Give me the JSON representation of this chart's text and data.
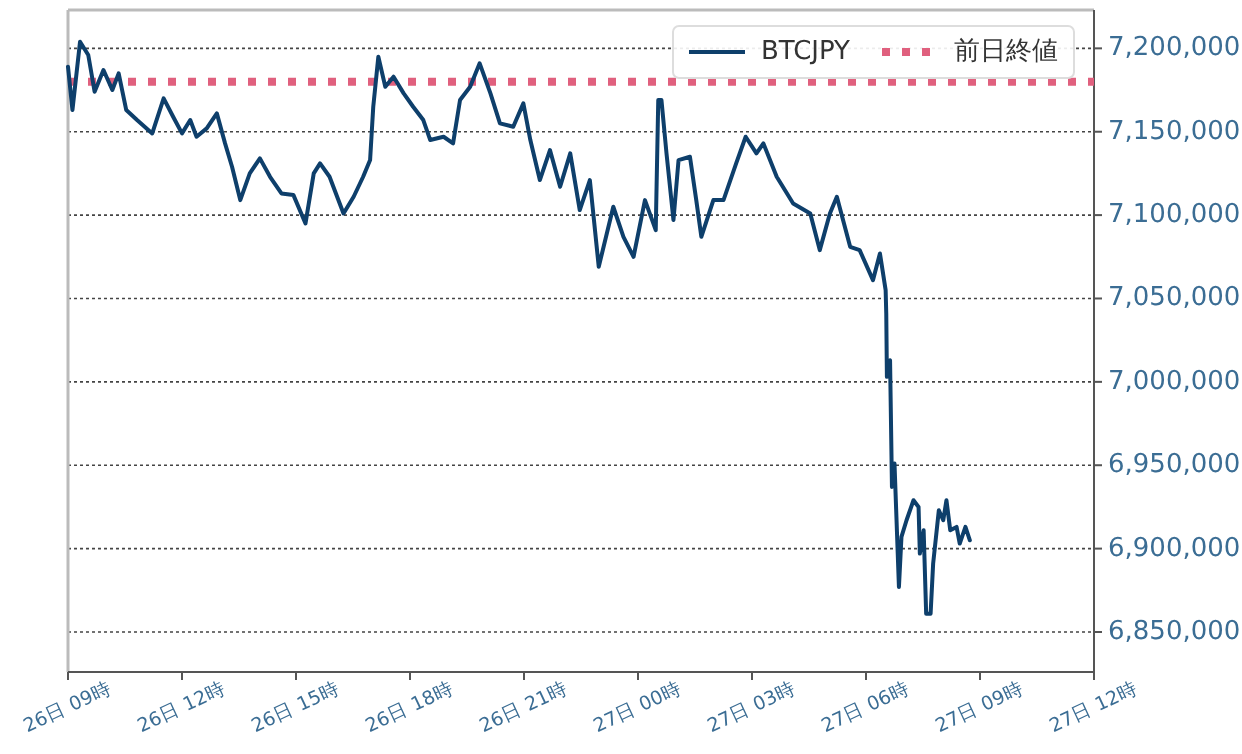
{
  "chart_data": {
    "type": "line",
    "x": [
      "--01-26T09:00",
      "--01-26T09:07",
      "--01-26T09:19",
      "--01-26T09:32",
      "--01-26T09:42",
      "--01-26T09:56",
      "--01-26T10:10",
      "--01-26T10:20",
      "--01-26T10:32",
      "--01-26T10:49",
      "--01-26T11:13",
      "--01-26T11:31",
      "--01-26T11:46",
      "--01-26T12:00",
      "--01-26T12:13",
      "--01-26T12:23",
      "--01-26T12:39",
      "--01-26T12:55",
      "--01-26T13:08",
      "--01-26T13:19",
      "--01-26T13:32",
      "--01-26T13:47",
      "--01-26T14:03",
      "--01-26T14:19",
      "--01-26T14:37",
      "--01-26T14:56",
      "--01-26T15:15",
      "--01-26T15:28",
      "--01-26T15:38",
      "--01-26T15:53",
      "--01-26T16:15",
      "--01-26T16:31",
      "--01-26T16:46",
      "--01-26T16:57",
      "--01-26T17:02",
      "--01-26T17:10",
      "--01-26T17:21",
      "--01-26T17:34",
      "--01-26T17:50",
      "--01-26T18:05",
      "--01-26T18:21",
      "--01-26T18:32",
      "--01-26T18:53",
      "--01-26T19:08",
      "--01-26T19:19",
      "--01-26T19:35",
      "--01-26T19:50",
      "--01-26T20:07",
      "--01-26T20:22",
      "--01-26T20:43",
      "--01-26T20:59",
      "--01-26T21:10",
      "--01-26T21:25",
      "--01-26T21:41",
      "--01-26T21:57",
      "--01-26T22:13",
      "--01-26T22:28",
      "--01-26T22:44",
      "--01-26T22:58",
      "--01-26T23:21",
      "--01-26T23:37",
      "--01-26T23:53",
      "--01-27T00:11",
      "--01-27T00:28",
      "--01-27T00:32",
      "--01-27T00:37",
      "--01-27T00:45",
      "--01-27T00:56",
      "--01-27T01:04",
      "--01-27T01:22",
      "--01-27T01:32",
      "--01-27T01:40",
      "--01-27T01:59",
      "--01-27T02:15",
      "--01-27T02:35",
      "--01-27T02:50",
      "--01-27T03:07",
      "--01-27T03:18",
      "--01-27T03:39",
      "--01-27T04:05",
      "--01-27T04:32",
      "--01-27T04:47",
      "--01-27T05:03",
      "--01-27T05:14",
      "--01-27T05:35",
      "--01-27T05:50",
      "--01-27T06:11",
      "--01-27T06:22",
      "--01-27T06:31",
      "--01-27T06:32",
      "--01-27T06:33",
      "--01-27T06:38",
      "--01-27T06:41",
      "--01-27T06:45",
      "--01-27T06:52",
      "--01-27T06:56",
      "--01-27T07:04",
      "--01-27T07:15",
      "--01-27T07:23",
      "--01-27T07:25",
      "--01-27T07:31",
      "--01-27T07:35",
      "--01-27T07:42",
      "--01-27T07:46",
      "--01-27T07:55",
      "--01-27T08:02",
      "--01-27T08:07",
      "--01-27T08:13",
      "--01-27T08:23",
      "--01-27T08:28",
      "--01-27T08:37",
      "--01-27T08:44"
    ],
    "series": [
      {
        "name": "BTCJPY",
        "color": "#0e3f6b",
        "values": [
          7189000,
          7163000,
          7204000,
          7196000,
          7174000,
          7187000,
          7175000,
          7185000,
          7163000,
          7157000,
          7149000,
          7170000,
          7159000,
          7149000,
          7157000,
          7147000,
          7152000,
          7161000,
          7143000,
          7129000,
          7109000,
          7125000,
          7134000,
          7123000,
          7113000,
          7112000,
          7095000,
          7125000,
          7131000,
          7123000,
          7101000,
          7111000,
          7123000,
          7133000,
          7165000,
          7195000,
          7177000,
          7183000,
          7173000,
          7165000,
          7157000,
          7145000,
          7147000,
          7143000,
          7169000,
          7177000,
          7191000,
          7173000,
          7155000,
          7153000,
          7167000,
          7145000,
          7121000,
          7139000,
          7117000,
          7137000,
          7103000,
          7121000,
          7069000,
          7105000,
          7087000,
          7075000,
          7109000,
          7091000,
          7169000,
          7169000,
          7137000,
          7097000,
          7133000,
          7135000,
          7109000,
          7087000,
          7109000,
          7109000,
          7131000,
          7147000,
          7137000,
          7143000,
          7123000,
          7107000,
          7101000,
          7079000,
          7101000,
          7111000,
          7081000,
          7079000,
          7061000,
          7077000,
          7055000,
          7041000,
          7003000,
          7013000,
          6937000,
          6951000,
          6877000,
          6907000,
          6917000,
          6929000,
          6925000,
          6897000,
          6911000,
          6861000,
          6861000,
          6891000,
          6923000,
          6917000,
          6929000,
          6911000,
          6913000,
          6903000,
          6913000,
          6905000
        ]
      }
    ],
    "ref_lines": [
      {
        "axis": "y",
        "value": 7180000,
        "label": "前日終値",
        "color": "#e0607e",
        "line_style": "dotted"
      }
    ],
    "xlim": [
      "--01-26T09:00",
      "--01-27T12:00"
    ],
    "xticks": [
      {
        "value": "--01-26T09:00",
        "label": "26日 09時"
      },
      {
        "value": "--01-26T12:00",
        "label": "26日 12時"
      },
      {
        "value": "--01-26T15:00",
        "label": "26日 15時"
      },
      {
        "value": "--01-26T18:00",
        "label": "26日 18時"
      },
      {
        "value": "--01-26T21:00",
        "label": "26日 21時"
      },
      {
        "value": "--01-27T00:00",
        "label": "27日 00時"
      },
      {
        "value": "--01-27T03:00",
        "label": "27日 03時"
      },
      {
        "value": "--01-27T06:00",
        "label": "27日 06時"
      },
      {
        "value": "--01-27T09:00",
        "label": "27日 09時"
      },
      {
        "value": "--01-27T12:00",
        "label": "27日 12時"
      }
    ],
    "ylim": [
      6826000,
      7223000
    ],
    "yticks": [
      {
        "value": 6850000,
        "label": "6,850,000"
      },
      {
        "value": 6900000,
        "label": "6,900,000"
      },
      {
        "value": 6950000,
        "label": "6,950,000"
      },
      {
        "value": 7000000,
        "label": "7,000,000"
      },
      {
        "value": 7050000,
        "label": "7,050,000"
      },
      {
        "value": 7100000,
        "label": "7,100,000"
      },
      {
        "value": 7150000,
        "label": "7,150,000"
      },
      {
        "value": 7200000,
        "label": "7,200,000"
      }
    ],
    "grid": "y",
    "legend": "top right"
  }
}
